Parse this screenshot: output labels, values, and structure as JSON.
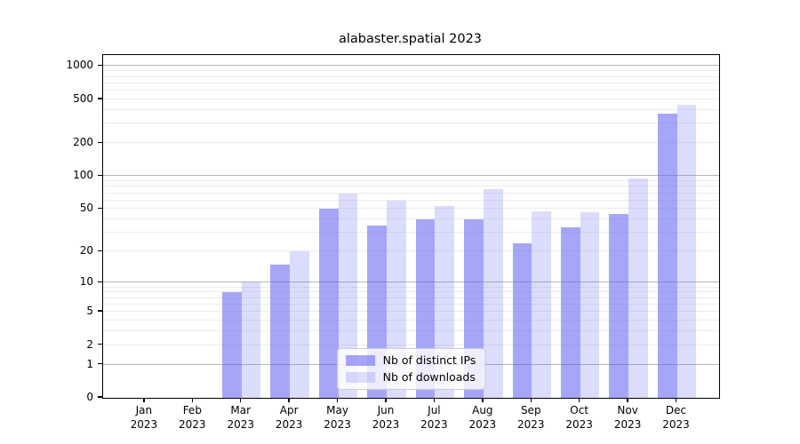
{
  "title": "alabaster.spatial 2023",
  "chart_data": {
    "type": "bar",
    "title": "alabaster.spatial 2023",
    "scale": "log1p (symlog-like: y position proportional to log10(value+1))",
    "categories": [
      "Jan",
      "Feb",
      "Mar",
      "Apr",
      "May",
      "Jun",
      "Jul",
      "Aug",
      "Sep",
      "Oct",
      "Nov",
      "Dec"
    ],
    "year": "2023",
    "series": [
      {
        "name": "Nb of distinct IPs",
        "color": "rgba(110,110,245,0.61)",
        "values": [
          0,
          0,
          8,
          15,
          50,
          35,
          40,
          40,
          24,
          34,
          45,
          370
        ]
      },
      {
        "name": "Nb of downloads",
        "color": "rgba(110,110,245,0.24)",
        "values": [
          0,
          0,
          10,
          20,
          70,
          60,
          53,
          76,
          48,
          47,
          95,
          445
        ]
      }
    ],
    "xlabel": "",
    "ylabel": "",
    "y_tick_labels": [
      "0",
      "1",
      "2",
      "5",
      "10",
      "20",
      "50",
      "100",
      "200",
      "500",
      "1000"
    ],
    "y_tick_values": [
      0,
      1,
      2,
      5,
      10,
      20,
      50,
      100,
      200,
      500,
      1000
    ],
    "ylim": [
      0,
      1070
    ],
    "grid": "major gray lines at 1,10,100,1000; light minor lines at 2-9, 20-90, 200-900",
    "legend_position": "lower center",
    "colors": {
      "bar_base": "#6e6ef5",
      "grid_major": "#b3b3b3",
      "grid_minor": "#ececec",
      "axis": "#000000",
      "legend_border": "#cccccc"
    }
  }
}
